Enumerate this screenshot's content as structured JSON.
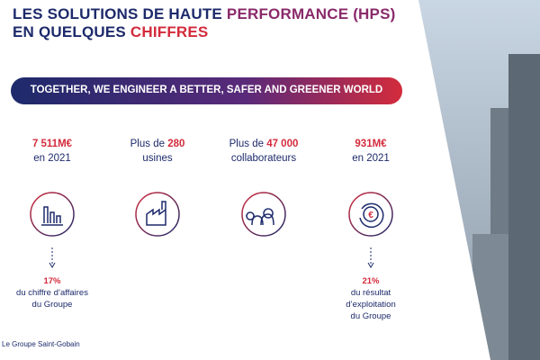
{
  "header": {
    "title_line1": {
      "plain": "LES SOLUTIONS DE HAUTE ",
      "highlight": "PERFORMANCE (HPS)"
    },
    "title_line2": {
      "plain": "EN QUELQUES ",
      "highlight": "CHIFFRES"
    }
  },
  "banner": "TOGETHER, WE ENGINEER A BETTER, SAFER AND GREENER WORLD",
  "items": [
    {
      "highlight": "7 511M€",
      "line2": "en 2021",
      "note": {
        "highlight": "17%",
        "lines": [
          "du chiffre d’affaires",
          "du Groupe"
        ]
      }
    },
    {
      "prefix": "Plus de ",
      "highlight": "280",
      "line2": "usines"
    },
    {
      "prefix": "Plus de ",
      "highlight": "47 000",
      "line2": "collaborateurs"
    },
    {
      "highlight": "931M€",
      "line2": "en 2021",
      "note": {
        "highlight": "21%",
        "lines": [
          "du résultat",
          "d’exploitation",
          "du Groupe"
        ]
      }
    }
  ],
  "footer": "Le Groupe Saint-Gobain"
}
